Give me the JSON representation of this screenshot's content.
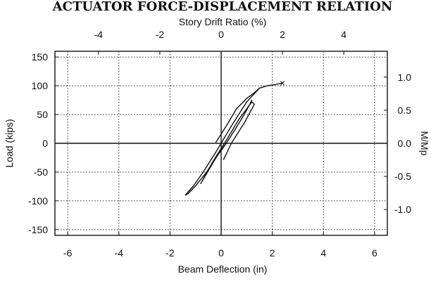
{
  "chart_data": {
    "type": "line",
    "title": "ACTUATOR FORCE-DISPLACEMENT RELATION",
    "xlabel": "Beam Deflection (in)",
    "ylabel": "Load (kips)",
    "x2label": "Story Drift Ratio (%)",
    "y2label": "M/Mp",
    "xlim": [
      -6.5,
      6.5
    ],
    "ylim": [
      -160,
      160
    ],
    "x2lim": [
      -5.42,
      5.42
    ],
    "y2lim": [
      -1.39,
      1.39
    ],
    "xticks": [
      -6,
      -4,
      -2,
      0,
      2,
      4,
      6
    ],
    "xtick_labels": [
      "-6",
      "-4",
      "-2",
      "0",
      "2",
      "4",
      "6"
    ],
    "yticks": [
      -150,
      -100,
      -50,
      0,
      50,
      100,
      150
    ],
    "ytick_labels": [
      "-150",
      "-100",
      "-50",
      "0",
      "50",
      "100",
      "150"
    ],
    "x2ticks": [
      -4,
      -2,
      0,
      2,
      4
    ],
    "x2tick_labels": [
      "-4",
      "-2",
      "0",
      "2",
      "4"
    ],
    "y2ticks": [
      1.0,
      0.5,
      0.0,
      -0.5,
      -1.0
    ],
    "y2tick_labels": [
      "1.0",
      "0.5",
      "0.0",
      "-0.5",
      "-1.0"
    ],
    "grid": true,
    "series": [
      {
        "x": [
          0.1,
          0.4,
          0.9,
          1.3,
          1.2,
          0.7,
          0.2,
          -0.4,
          -0.8,
          -0.7,
          -0.3,
          0.2
        ],
        "y": [
          -28,
          0,
          35,
          68,
          72,
          42,
          5,
          -40,
          -70,
          -62,
          -30,
          5
        ]
      },
      {
        "x": [
          -0.2,
          0.2,
          0.6,
          1.0,
          1.3,
          1.5,
          1.8,
          2.1,
          2.4
        ],
        "y": [
          2,
          30,
          60,
          78,
          88,
          96,
          100,
          102,
          105
        ]
      },
      {
        "x": [
          1.5,
          1.0,
          0.4,
          -0.2,
          -0.7,
          -1.1,
          -1.3,
          -1.4,
          -1.3,
          -1.0,
          -0.6,
          -0.2,
          0.2,
          0.6,
          0.9,
          1.1,
          1.2
        ],
        "y": [
          96,
          72,
          30,
          -15,
          -50,
          -75,
          -85,
          -90,
          -88,
          -74,
          -52,
          -25,
          0,
          28,
          50,
          66,
          75
        ]
      }
    ],
    "annotations": [
      {
        "text": "×",
        "x": 2.4,
        "y": 105
      }
    ]
  }
}
